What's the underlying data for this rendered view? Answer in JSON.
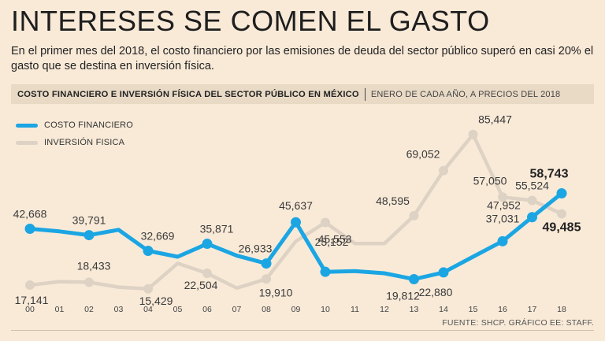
{
  "header": {
    "title": "INTERESES SE COMEN EL GASTO",
    "subtitle": "En el primer mes del 2018, el costo financiero por las emisiones de deuda del sector público superó en casi 20% el gasto que se destina en inversión física."
  },
  "section_bar": {
    "title": "COSTO FINANCIERO E INVERSIÓN FÍSICA DEL SECTOR PÚBLICO EN MÉXICO",
    "note": "ENERO DE CADA AÑO, A PRECIOS DEL 2018"
  },
  "colors": {
    "costo": "#1ba6e3",
    "inversion": "#ddd2c3",
    "background": "#f9ead8"
  },
  "source": "FUENTE: SHCP.  GRÁFICO EE: STAFF.",
  "chart_data": {
    "type": "line",
    "title": "COSTO FINANCIERO E INVERSIÓN FÍSICA DEL SECTOR PÚBLICO EN MÉXICO",
    "xlabel": "",
    "ylabel": "",
    "ylim": [
      15000,
      90000
    ],
    "categories": [
      "00",
      "01",
      "02",
      "03",
      "04",
      "05",
      "06",
      "07",
      "08",
      "09",
      "10",
      "11",
      "12",
      "13",
      "14",
      "15",
      "16",
      "17",
      "18"
    ],
    "series": [
      {
        "name": "COSTO FINANCIERO",
        "color": "#1ba6e3",
        "values": [
          42668,
          41500,
          39791,
          42200,
          32669,
          30000,
          35871,
          30500,
          26933,
          45637,
          23152,
          23500,
          22500,
          19812,
          22880,
          30000,
          37031,
          47952,
          58743
        ],
        "labels": [
          "42,668",
          "",
          "39,791",
          "",
          "32,669",
          "",
          "35,871",
          "",
          "26,933",
          "45,637",
          "23,152",
          "",
          "",
          "19,812",
          "22,880",
          "",
          "37,031",
          "47,952",
          "58,743"
        ]
      },
      {
        "name": "INVERSIÓN FISICA",
        "color": "#ddd2c3",
        "values": [
          17141,
          18700,
          18433,
          16200,
          15429,
          27000,
          22504,
          15800,
          19910,
          37000,
          45553,
          36000,
          36000,
          48595,
          69052,
          85447,
          57050,
          55524,
          49485
        ],
        "labels": [
          "17,141",
          "",
          "18,433",
          "",
          "15,429",
          "",
          "22,504",
          "",
          "19,910",
          "",
          "45,553",
          "",
          "",
          "48,595",
          "69,052",
          "85,447",
          "57,050",
          "55,524",
          "49,485"
        ]
      }
    ]
  }
}
